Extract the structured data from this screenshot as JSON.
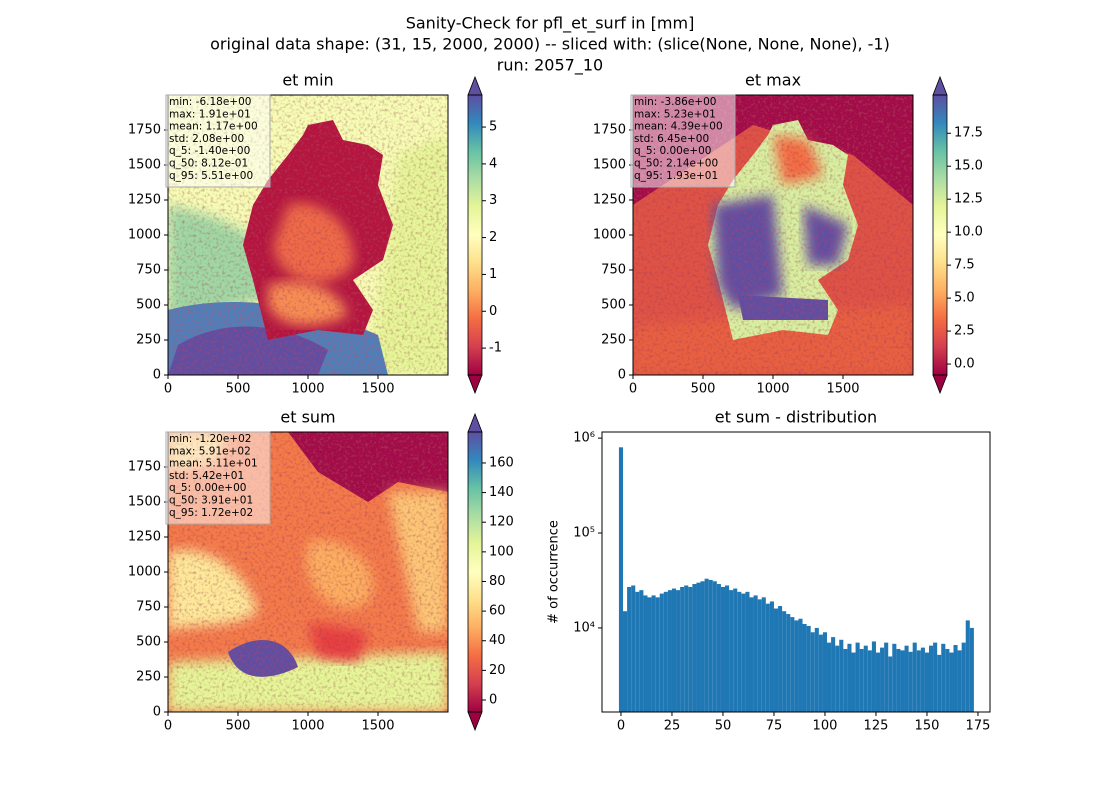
{
  "figure_title": [
    "Sanity-Check for pfl_et_surf in [mm]",
    "original data shape: (31, 15, 2000, 2000) -- sliced with: (slice(None, None, None), -1)",
    "run: 2057_10"
  ],
  "chart_data": [
    {
      "type": "heatmap",
      "title": "et min",
      "colormap": "Spectral",
      "xlim": [
        0,
        2000
      ],
      "xticks": [
        0,
        500,
        1000,
        1500
      ],
      "ylim": [
        0,
        2000
      ],
      "yticks": [
        0,
        250,
        500,
        750,
        1000,
        1250,
        1500,
        1750
      ],
      "clim": [
        -1.73,
        5.87
      ],
      "cticks": [
        -1,
        0,
        1,
        2,
        3,
        4,
        5
      ],
      "stats": [
        "min: -6.18e+00",
        "max: 1.91e+01",
        "mean: 1.17e+00",
        "std: 2.08e+00",
        "q_5: -1.40e+00",
        "q_50: 8.12e-01",
        "q_95: 5.51e+00"
      ]
    },
    {
      "type": "heatmap",
      "title": "et max",
      "colormap": "Spectral",
      "xlim": [
        0,
        2000
      ],
      "xticks": [
        0,
        500,
        1000,
        1500
      ],
      "ylim": [
        0,
        2000
      ],
      "yticks": [
        0,
        250,
        500,
        750,
        1000,
        1250,
        1500,
        1750
      ],
      "clim": [
        -0.83,
        20.4
      ],
      "cticks": [
        {
          "value": 0,
          "label": "0.0"
        },
        2.5,
        {
          "value": 5,
          "label": "5.0"
        },
        7.5,
        {
          "value": 10,
          "label": "10.0"
        },
        12.5,
        {
          "value": 15,
          "label": "15.0"
        },
        17.5
      ],
      "stats": [
        "min: -3.86e+00",
        "max: 5.23e+01",
        "mean: 4.39e+00",
        "std: 6.45e+00",
        "q_5: 0.00e+00",
        "q_50: 2.14e+00",
        "q_95: 1.93e+01"
      ]
    },
    {
      "type": "heatmap",
      "title": "et sum",
      "colormap": "Spectral",
      "xlim": [
        0,
        2000
      ],
      "xticks": [
        0,
        500,
        1000,
        1500
      ],
      "ylim": [
        0,
        2000
      ],
      "yticks": [
        0,
        250,
        500,
        750,
        1000,
        1250,
        1500,
        1750
      ],
      "clim": [
        -8.1,
        180.9
      ],
      "cticks": [
        0,
        20,
        40,
        60,
        80,
        100,
        120,
        140,
        160
      ],
      "stats": [
        "min: -1.20e+02",
        "max: 5.91e+02",
        "mean: 5.11e+01",
        "std: 5.42e+01",
        "q_5: 0.00e+00",
        "q_50: 3.91e+01",
        "q_95: 1.72e+02"
      ]
    },
    {
      "type": "histogram",
      "title": "et sum - distribution",
      "ylabel": "# of occurrence",
      "color": "#1f77b4",
      "log_y": true,
      "xlim": [
        -9.3,
        180.9
      ],
      "xticks": [
        0,
        25,
        50,
        75,
        100,
        125,
        150,
        175
      ],
      "ylim": [
        1300,
        1160000
      ],
      "yticks": [
        {
          "value": 10000,
          "label": "10⁴"
        },
        {
          "value": 100000,
          "label": "10⁵"
        },
        {
          "value": 1000000,
          "label": "10⁶"
        }
      ],
      "bins": [
        -1,
        1,
        3,
        5,
        7,
        9,
        11,
        13,
        15,
        17,
        19,
        21,
        23,
        25,
        27,
        29,
        31,
        33,
        35,
        37,
        39,
        41,
        43,
        45,
        47,
        49,
        51,
        53,
        55,
        57,
        59,
        61,
        63,
        65,
        67,
        69,
        71,
        73,
        75,
        77,
        79,
        81,
        83,
        85,
        87,
        89,
        91,
        93,
        95,
        97,
        99,
        101,
        103,
        105,
        107,
        109,
        111,
        113,
        115,
        117,
        119,
        121,
        123,
        125,
        127,
        129,
        131,
        133,
        135,
        137,
        139,
        141,
        143,
        145,
        147,
        149,
        151,
        153,
        155,
        157,
        159,
        161,
        163,
        165,
        167,
        169,
        171,
        173
      ],
      "values": [
        800000,
        15000,
        27000,
        28000,
        24000,
        25000,
        22000,
        21000,
        22000,
        21000,
        23000,
        24000,
        25000,
        26000,
        25000,
        27000,
        28000,
        27000,
        29000,
        30000,
        31000,
        33000,
        32000,
        31000,
        29000,
        27000,
        28000,
        25000,
        26000,
        24000,
        23000,
        24000,
        21000,
        22000,
        20000,
        21000,
        18000,
        19000,
        16000,
        17000,
        15000,
        14000,
        13000,
        12000,
        12500,
        11000,
        10500,
        9000,
        10000,
        8500,
        9000,
        7000,
        8000,
        6500,
        7500,
        6000,
        6800,
        5500,
        7000,
        6000,
        6500,
        5800,
        7200,
        5500,
        6200,
        7000,
        5000,
        6800,
        6000,
        5800,
        6500,
        5600,
        7000,
        5800,
        6200,
        5500,
        6500,
        7000,
        5200,
        6800,
        6000,
        5500,
        6600,
        5800,
        7000,
        12000,
        10000
      ]
    }
  ]
}
